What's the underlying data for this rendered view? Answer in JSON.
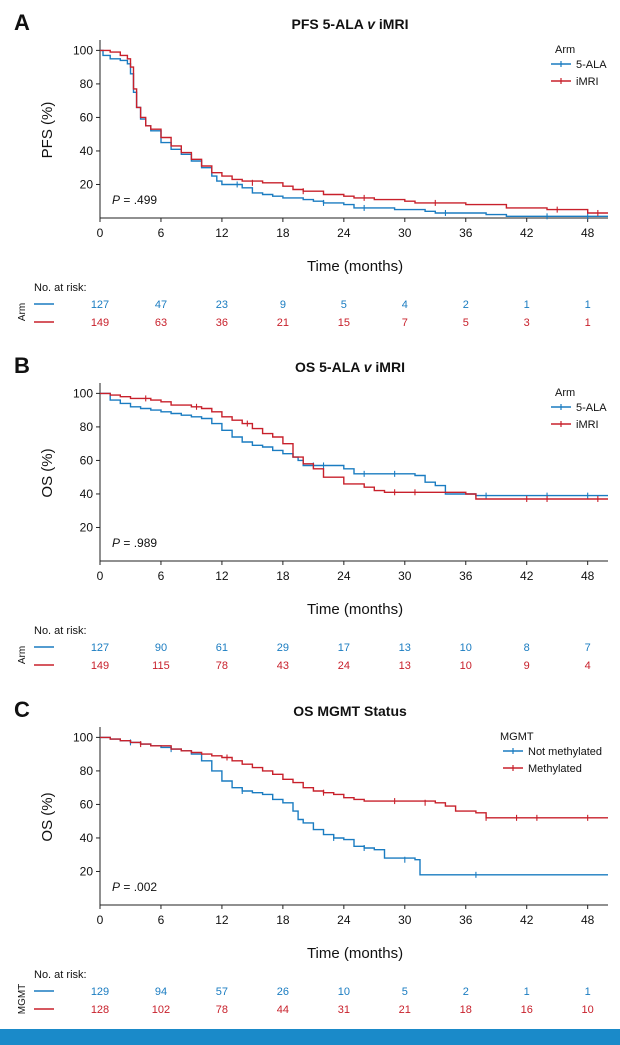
{
  "colors": {
    "blue": "#1a7cc1",
    "red": "#c8202b",
    "bottom_bar": "#1a8ac9"
  },
  "x_axis": {
    "label": "Time (months)",
    "ticks": [
      0,
      6,
      12,
      18,
      24,
      30,
      36,
      42,
      48
    ],
    "xlim": [
      0,
      50
    ]
  },
  "risk_label": "No. at risk:",
  "chart_data": [
    {
      "type": "line",
      "panel": "A",
      "title": "PFS 5-ALA v iMRI",
      "title_main": "PFS 5-ALA ",
      "title_v": "v",
      "title_tail": " iMRI",
      "ylabel": "PFS (%)",
      "yticks": [
        20,
        40,
        60,
        80,
        100
      ],
      "ylim": [
        0,
        105
      ],
      "xlim": [
        0,
        50
      ],
      "legend_title": "Arm",
      "risk_side_label": "Arm",
      "p_label": "P",
      "p_value": " = .499",
      "series": [
        {
          "name": "5-ALA",
          "color": "blue",
          "risk": [
            "127",
            "47",
            "23",
            "9",
            "5",
            "4",
            "2",
            "1",
            "1"
          ],
          "points": [
            [
              0,
              100
            ],
            [
              0.3,
              97
            ],
            [
              1,
              95
            ],
            [
              2,
              94
            ],
            [
              2.7,
              92
            ],
            [
              3,
              86
            ],
            [
              3.3,
              75
            ],
            [
              3.6,
              66
            ],
            [
              4,
              59
            ],
            [
              4.5,
              55
            ],
            [
              5,
              52
            ],
            [
              6,
              45
            ],
            [
              7,
              41
            ],
            [
              8,
              38
            ],
            [
              9,
              34
            ],
            [
              10,
              30
            ],
            [
              11,
              25
            ],
            [
              11.5,
              22
            ],
            [
              12,
              20
            ],
            [
              13,
              20
            ],
            [
              14,
              18
            ],
            [
              15,
              15
            ],
            [
              16,
              14
            ],
            [
              17,
              13
            ],
            [
              18,
              12
            ],
            [
              20,
              11
            ],
            [
              21,
              10
            ],
            [
              22,
              9
            ],
            [
              24,
              8
            ],
            [
              25,
              6
            ],
            [
              28,
              6
            ],
            [
              29,
              5
            ],
            [
              32,
              4
            ],
            [
              33,
              3
            ],
            [
              36,
              3
            ],
            [
              38,
              2
            ],
            [
              40,
              1
            ],
            [
              50,
              1
            ]
          ],
          "censor": [
            [
              13.5,
              20
            ],
            [
              22,
              9
            ],
            [
              26,
              6
            ],
            [
              34,
              3
            ],
            [
              44,
              1
            ],
            [
              48,
              1
            ]
          ]
        },
        {
          "name": "iMRI",
          "color": "red",
          "risk": [
            "149",
            "63",
            "36",
            "21",
            "15",
            "7",
            "5",
            "3",
            "1"
          ],
          "points": [
            [
              0,
              100
            ],
            [
              1,
              99
            ],
            [
              2,
              97
            ],
            [
              2.7,
              95
            ],
            [
              3,
              90
            ],
            [
              3.3,
              77
            ],
            [
              3.6,
              66
            ],
            [
              4,
              60
            ],
            [
              4.5,
              55
            ],
            [
              5,
              53
            ],
            [
              6,
              48
            ],
            [
              7,
              43
            ],
            [
              8,
              39
            ],
            [
              9,
              35
            ],
            [
              10,
              31
            ],
            [
              11,
              27
            ],
            [
              12,
              25
            ],
            [
              13,
              23
            ],
            [
              14,
              22
            ],
            [
              16,
              21
            ],
            [
              18,
              19
            ],
            [
              19,
              17
            ],
            [
              20,
              16
            ],
            [
              22,
              14
            ],
            [
              24,
              13
            ],
            [
              25,
              12
            ],
            [
              27,
              11
            ],
            [
              30,
              10
            ],
            [
              31,
              9
            ],
            [
              36,
              8
            ],
            [
              40,
              6
            ],
            [
              43,
              6
            ],
            [
              44,
              5
            ],
            [
              48,
              3
            ],
            [
              50,
              3
            ]
          ],
          "censor": [
            [
              15,
              21
            ],
            [
              20,
              16
            ],
            [
              26,
              12
            ],
            [
              33,
              9
            ],
            [
              45,
              5
            ],
            [
              49,
              3
            ]
          ]
        }
      ]
    },
    {
      "type": "line",
      "panel": "B",
      "title": "OS 5-ALA v iMRI",
      "title_main": "OS 5-ALA ",
      "title_v": "v",
      "title_tail": " iMRI",
      "ylabel": "OS (%)",
      "yticks": [
        20,
        40,
        60,
        80,
        100
      ],
      "ylim": [
        0,
        105
      ],
      "xlim": [
        0,
        50
      ],
      "legend_title": "Arm",
      "risk_side_label": "Arm",
      "p_label": "P",
      "p_value": " = .989",
      "series": [
        {
          "name": "5-ALA",
          "color": "blue",
          "risk": [
            "127",
            "90",
            "61",
            "29",
            "17",
            "13",
            "10",
            "8",
            "7"
          ],
          "points": [
            [
              0,
              100
            ],
            [
              1,
              96
            ],
            [
              2,
              94
            ],
            [
              3,
              92
            ],
            [
              4,
              91
            ],
            [
              5,
              90
            ],
            [
              6,
              89
            ],
            [
              7,
              88
            ],
            [
              8,
              87
            ],
            [
              9,
              86
            ],
            [
              10,
              85
            ],
            [
              11,
              82
            ],
            [
              12,
              78
            ],
            [
              13,
              74
            ],
            [
              14,
              71
            ],
            [
              15,
              69
            ],
            [
              16,
              68
            ],
            [
              17,
              66
            ],
            [
              18,
              64
            ],
            [
              19,
              62
            ],
            [
              19.5,
              60
            ],
            [
              20,
              57
            ],
            [
              23,
              57
            ],
            [
              24,
              55
            ],
            [
              25,
              52
            ],
            [
              31,
              51
            ],
            [
              32,
              47
            ],
            [
              33,
              45
            ],
            [
              34,
              40
            ],
            [
              36,
              40
            ],
            [
              37,
              39
            ],
            [
              50,
              39
            ]
          ],
          "censor": [
            [
              21,
              57
            ],
            [
              22,
              57
            ],
            [
              26,
              52
            ],
            [
              29,
              52
            ],
            [
              38,
              39
            ],
            [
              44,
              39
            ],
            [
              48,
              39
            ]
          ]
        },
        {
          "name": "iMRI",
          "color": "red",
          "risk": [
            "149",
            "115",
            "78",
            "43",
            "24",
            "13",
            "10",
            "9",
            "4"
          ],
          "points": [
            [
              0,
              100
            ],
            [
              1,
              99
            ],
            [
              2,
              98
            ],
            [
              3,
              97
            ],
            [
              4,
              97
            ],
            [
              5,
              96
            ],
            [
              6,
              95
            ],
            [
              7,
              93
            ],
            [
              8,
              93
            ],
            [
              9,
              92
            ],
            [
              10,
              91
            ],
            [
              11,
              89
            ],
            [
              12,
              86
            ],
            [
              13,
              84
            ],
            [
              14,
              82
            ],
            [
              15,
              79
            ],
            [
              16,
              76
            ],
            [
              17,
              74
            ],
            [
              18,
              70
            ],
            [
              19,
              62
            ],
            [
              20,
              58
            ],
            [
              21,
              55
            ],
            [
              22,
              50
            ],
            [
              24,
              46
            ],
            [
              26,
              44
            ],
            [
              27,
              42
            ],
            [
              28,
              41
            ],
            [
              30,
              41
            ],
            [
              32,
              41
            ],
            [
              35,
              41
            ],
            [
              36,
              40
            ],
            [
              37,
              37
            ],
            [
              50,
              37
            ]
          ],
          "censor": [
            [
              4.5,
              97
            ],
            [
              9.5,
              92
            ],
            [
              14.5,
              82
            ],
            [
              29,
              41
            ],
            [
              31,
              41
            ],
            [
              42,
              37
            ],
            [
              44,
              37
            ],
            [
              49,
              37
            ]
          ]
        }
      ]
    },
    {
      "type": "line",
      "panel": "C",
      "title": "OS MGMT Status",
      "title_main": "OS MGMT Status",
      "title_v": "",
      "title_tail": "",
      "ylabel": "OS (%)",
      "yticks": [
        20,
        40,
        60,
        80,
        100
      ],
      "ylim": [
        0,
        105
      ],
      "xlim": [
        0,
        50
      ],
      "legend_title": "MGMT",
      "risk_side_label": "MGMT",
      "p_label": "P",
      "p_value": " = .002",
      "series": [
        {
          "name": "Not methylated",
          "color": "blue",
          "risk": [
            "129",
            "94",
            "57",
            "26",
            "10",
            "5",
            "2",
            "1",
            "1"
          ],
          "points": [
            [
              0,
              100
            ],
            [
              1,
              99
            ],
            [
              2,
              98
            ],
            [
              3,
              97
            ],
            [
              4,
              96
            ],
            [
              5,
              95
            ],
            [
              6,
              94
            ],
            [
              7,
              93
            ],
            [
              8,
              92
            ],
            [
              9,
              90
            ],
            [
              10,
              86
            ],
            [
              11,
              80
            ],
            [
              12,
              74
            ],
            [
              13,
              70
            ],
            [
              14,
              68
            ],
            [
              15,
              67
            ],
            [
              16,
              66
            ],
            [
              17,
              63
            ],
            [
              18,
              61
            ],
            [
              19,
              56
            ],
            [
              19.5,
              51
            ],
            [
              20,
              49
            ],
            [
              21,
              45
            ],
            [
              22,
              42
            ],
            [
              23,
              40
            ],
            [
              24,
              39
            ],
            [
              25,
              35
            ],
            [
              26,
              34
            ],
            [
              27,
              33
            ],
            [
              28,
              28
            ],
            [
              31,
              27
            ],
            [
              31.5,
              18
            ],
            [
              50,
              18
            ]
          ],
          "censor": [
            [
              3,
              97
            ],
            [
              7,
              93
            ],
            [
              14,
              68
            ],
            [
              23,
              40
            ],
            [
              26,
              34
            ],
            [
              30,
              27
            ],
            [
              37,
              18
            ]
          ]
        },
        {
          "name": "Methylated",
          "color": "red",
          "risk": [
            "128",
            "102",
            "78",
            "44",
            "31",
            "21",
            "18",
            "16",
            "10"
          ],
          "points": [
            [
              0,
              100
            ],
            [
              1,
              99
            ],
            [
              2,
              98
            ],
            [
              3,
              97
            ],
            [
              4,
              96
            ],
            [
              5,
              95
            ],
            [
              6,
              95
            ],
            [
              7,
              93
            ],
            [
              8,
              92
            ],
            [
              9,
              91
            ],
            [
              10,
              90
            ],
            [
              11,
              89
            ],
            [
              12,
              88
            ],
            [
              13,
              86
            ],
            [
              14,
              84
            ],
            [
              15,
              82
            ],
            [
              16,
              80
            ],
            [
              17,
              78
            ],
            [
              18,
              75
            ],
            [
              19,
              73
            ],
            [
              20,
              70
            ],
            [
              21,
              68
            ],
            [
              22,
              67
            ],
            [
              23,
              66
            ],
            [
              24,
              64
            ],
            [
              25,
              63
            ],
            [
              26,
              62
            ],
            [
              33,
              61
            ],
            [
              34,
              59
            ],
            [
              35,
              56
            ],
            [
              37,
              55
            ],
            [
              38,
              52
            ],
            [
              50,
              52
            ]
          ],
          "censor": [
            [
              4,
              96
            ],
            [
              12.5,
              88
            ],
            [
              22,
              67
            ],
            [
              29,
              62
            ],
            [
              32,
              61
            ],
            [
              38,
              52
            ],
            [
              41,
              52
            ],
            [
              43,
              52
            ],
            [
              48,
              52
            ]
          ]
        }
      ]
    }
  ]
}
